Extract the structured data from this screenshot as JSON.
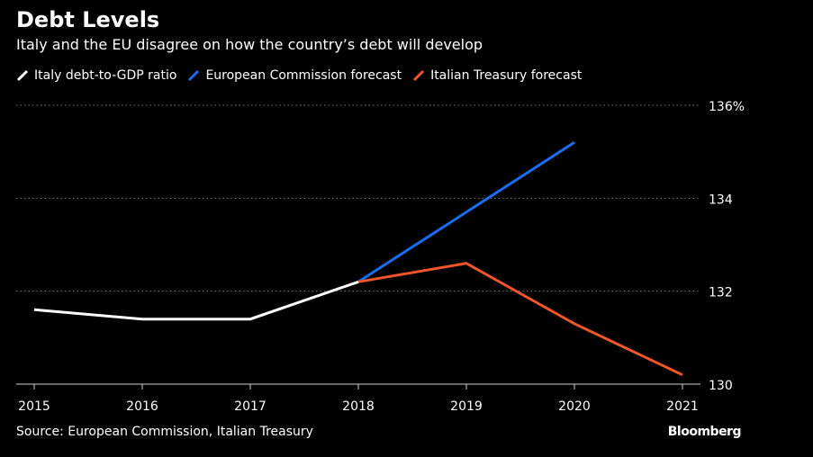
{
  "header": {
    "title": "Debt Levels",
    "subtitle": "Italy and the EU disagree on how the country’s debt will develop"
  },
  "footer": {
    "source": "Source: European Commission, Italian Treasury",
    "brand": "Bloomberg"
  },
  "chart_data": {
    "type": "line",
    "title": "Debt Levels",
    "subtitle": "Italy and the EU disagree on how the country’s debt will develop",
    "xlabel": "",
    "ylabel": "",
    "x_ticks": [
      "2015",
      "2016",
      "2017",
      "2018",
      "2019",
      "2020",
      "2021"
    ],
    "xlim": [
      2015,
      2021
    ],
    "ylim": [
      130,
      136
    ],
    "y_ticks": [
      {
        "value": 130,
        "label": "130"
      },
      {
        "value": 132,
        "label": "132"
      },
      {
        "value": 134,
        "label": "134"
      },
      {
        "value": 136,
        "label": "136%"
      }
    ],
    "grid": "horizontal dotted",
    "legend_position": "top-left",
    "series": [
      {
        "name": "Italy debt-to-GDP ratio",
        "color": "#ffffff",
        "x": [
          2015,
          2016,
          2017,
          2018
        ],
        "values": [
          131.6,
          131.4,
          131.4,
          132.2
        ]
      },
      {
        "name": "European Commission forecast",
        "color": "#1a6cf0",
        "x": [
          2018,
          2019,
          2020
        ],
        "values": [
          132.2,
          133.7,
          135.2
        ]
      },
      {
        "name": "Italian Treasury forecast",
        "color": "#f0562a",
        "x": [
          2018,
          2019,
          2020,
          2021
        ],
        "values": [
          132.2,
          132.6,
          131.3,
          130.2
        ]
      }
    ]
  }
}
